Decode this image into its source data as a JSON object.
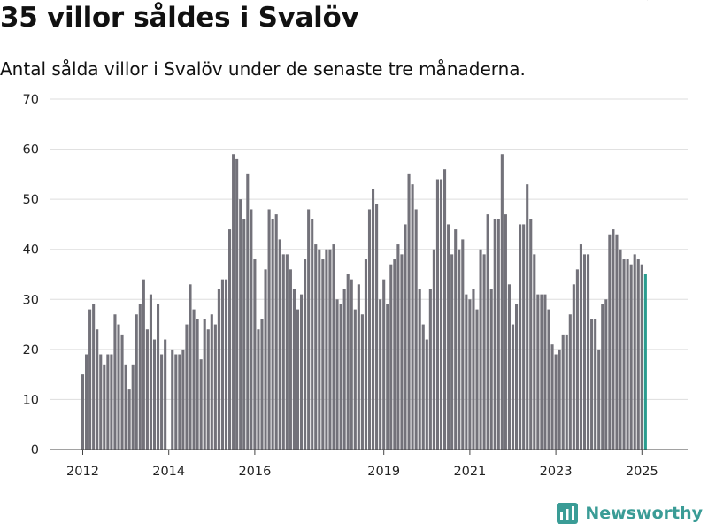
{
  "title": "35 villor såldes i Svalöv",
  "subtitle": "Antal sålda villor i Svalöv under de senaste tre månaderna.",
  "brand": {
    "name": "Newsworthy",
    "icon": "newsworthy-logo-icon",
    "color": "#3a9c96"
  },
  "colors": {
    "bar": "#73727a",
    "highlight": "#2a9d8f",
    "grid": "#dddddd",
    "axis": "#444444"
  },
  "chart_data": {
    "type": "bar",
    "x_start": "2012-01",
    "x_step": "month",
    "xtick_labels": [
      "2012",
      "2014",
      "2016",
      "2019",
      "2021",
      "2023",
      "2025"
    ],
    "xtick_dates": [
      "2012-01",
      "2014-01",
      "2016-01",
      "2019-01",
      "2021-01",
      "2023-01",
      "2025-01"
    ],
    "ylim": [
      0,
      70
    ],
    "yticks": [
      0,
      10,
      20,
      30,
      40,
      50,
      60,
      70
    ],
    "grid": true,
    "values": [
      15,
      19,
      28,
      29,
      24,
      19,
      17,
      19,
      19,
      27,
      25,
      23,
      17,
      12,
      17,
      27,
      29,
      34,
      24,
      31,
      22,
      29,
      19,
      22,
      0,
      20,
      19,
      19,
      20,
      25,
      33,
      28,
      26,
      18,
      26,
      24,
      27,
      25,
      32,
      34,
      34,
      44,
      59,
      58,
      50,
      46,
      55,
      48,
      38,
      24,
      26,
      36,
      48,
      46,
      47,
      42,
      39,
      39,
      36,
      32,
      28,
      31,
      38,
      48,
      46,
      41,
      40,
      38,
      40,
      40,
      41,
      30,
      29,
      32,
      35,
      34,
      28,
      33,
      27,
      38,
      48,
      52,
      49,
      30,
      34,
      29,
      37,
      38,
      41,
      39,
      45,
      55,
      53,
      48,
      32,
      25,
      22,
      32,
      40,
      54,
      54,
      56,
      45,
      39,
      44,
      40,
      42,
      31,
      30,
      32,
      28,
      40,
      39,
      47,
      32,
      46,
      46,
      59,
      47,
      33,
      25,
      29,
      45,
      45,
      53,
      46,
      39,
      31,
      31,
      31,
      28,
      21,
      19,
      20,
      23,
      23,
      27,
      33,
      36,
      41,
      39,
      39,
      26,
      26,
      20,
      29,
      30,
      43,
      44,
      43,
      40,
      38,
      38,
      37,
      39,
      38,
      37,
      35
    ],
    "highlight_last": true,
    "data_labels": [
      {
        "index": 159,
        "text": "35"
      }
    ]
  }
}
